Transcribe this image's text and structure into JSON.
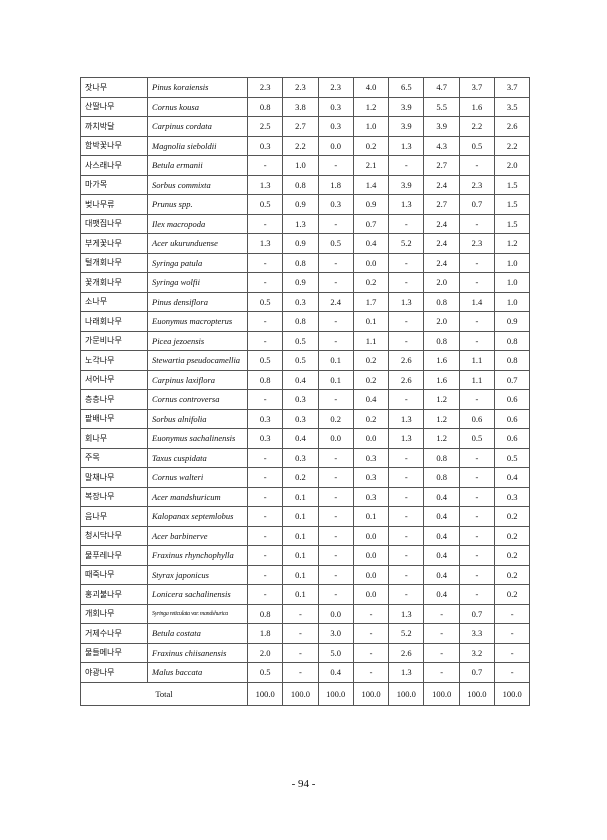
{
  "table": {
    "rows": [
      [
        "잣나무",
        "Pinus koraiensis",
        "2.3",
        "2.3",
        "2.3",
        "4.0",
        "6.5",
        "4.7",
        "3.7",
        "3.7"
      ],
      [
        "산딸나무",
        "Cornus kousa",
        "0.8",
        "3.8",
        "0.3",
        "1.2",
        "3.9",
        "5.5",
        "1.6",
        "3.5"
      ],
      [
        "까치박달",
        "Carpinus cordata",
        "2.5",
        "2.7",
        "0.3",
        "1.0",
        "3.9",
        "3.9",
        "2.2",
        "2.6"
      ],
      [
        "함박꽃나무",
        "Magnolia sieboldii",
        "0.3",
        "2.2",
        "0.0",
        "0.2",
        "1.3",
        "4.3",
        "0.5",
        "2.2"
      ],
      [
        "사스래나무",
        "Betula ermanii",
        "-",
        "1.0",
        "-",
        "2.1",
        "-",
        "2.7",
        "-",
        "2.0"
      ],
      [
        "마가목",
        "Sorbus commixta",
        "1.3",
        "0.8",
        "1.8",
        "1.4",
        "3.9",
        "2.4",
        "2.3",
        "1.5"
      ],
      [
        "벚나무류",
        "Prunus spp.",
        "0.5",
        "0.9",
        "0.3",
        "0.9",
        "1.3",
        "2.7",
        "0.7",
        "1.5"
      ],
      [
        "대팻집나무",
        "Ilex macropoda",
        "-",
        "1.3",
        "-",
        "0.7",
        "-",
        "2.4",
        "-",
        "1.5"
      ],
      [
        "부게꽃나무",
        "Acer ukurunduense",
        "1.3",
        "0.9",
        "0.5",
        "0.4",
        "5.2",
        "2.4",
        "2.3",
        "1.2"
      ],
      [
        "털개회나무",
        "Syringa patula",
        "-",
        "0.8",
        "-",
        "0.0",
        "-",
        "2.4",
        "-",
        "1.0"
      ],
      [
        "꽃개회나무",
        "Syringa wolfii",
        "-",
        "0.9",
        "-",
        "0.2",
        "-",
        "2.0",
        "-",
        "1.0"
      ],
      [
        "소나무",
        "Pinus densiflora",
        "0.5",
        "0.3",
        "2.4",
        "1.7",
        "1.3",
        "0.8",
        "1.4",
        "1.0"
      ],
      [
        "나래회나무",
        "Euonymus macropterus",
        "-",
        "0.8",
        "-",
        "0.1",
        "-",
        "2.0",
        "-",
        "0.9"
      ],
      [
        "가문비나무",
        "Picea jezoensis",
        "-",
        "0.5",
        "-",
        "1.1",
        "-",
        "0.8",
        "-",
        "0.8"
      ],
      [
        "노각나무",
        "Stewartia pseudocamellia",
        "0.5",
        "0.5",
        "0.1",
        "0.2",
        "2.6",
        "1.6",
        "1.1",
        "0.8"
      ],
      [
        "서어나무",
        "Carpinus laxiflora",
        "0.8",
        "0.4",
        "0.1",
        "0.2",
        "2.6",
        "1.6",
        "1.1",
        "0.7"
      ],
      [
        "층층나무",
        "Cornus controversa",
        "-",
        "0.3",
        "-",
        "0.4",
        "-",
        "1.2",
        "-",
        "0.6"
      ],
      [
        "팥배나무",
        "Sorbus alnifolia",
        "0.3",
        "0.3",
        "0.2",
        "0.2",
        "1.3",
        "1.2",
        "0.6",
        "0.6"
      ],
      [
        "회나무",
        "Euonymus sachalinensis",
        "0.3",
        "0.4",
        "0.0",
        "0.0",
        "1.3",
        "1.2",
        "0.5",
        "0.6"
      ],
      [
        "주목",
        "Taxus cuspidata",
        "-",
        "0.3",
        "-",
        "0.3",
        "-",
        "0.8",
        "-",
        "0.5"
      ],
      [
        "말채나무",
        "Cornus walteri",
        "-",
        "0.2",
        "-",
        "0.3",
        "-",
        "0.8",
        "-",
        "0.4"
      ],
      [
        "복장나무",
        "Acer mandshuricum",
        "-",
        "0.1",
        "-",
        "0.3",
        "-",
        "0.4",
        "-",
        "0.3"
      ],
      [
        "음나무",
        "Kalopanax septemlobus",
        "-",
        "0.1",
        "-",
        "0.1",
        "-",
        "0.4",
        "-",
        "0.2"
      ],
      [
        "청시닥나무",
        "Acer barbinerve",
        "-",
        "0.1",
        "-",
        "0.0",
        "-",
        "0.4",
        "-",
        "0.2"
      ],
      [
        "물푸레나무",
        "Fraxinus rhynchophylla",
        "-",
        "0.1",
        "-",
        "0.0",
        "-",
        "0.4",
        "-",
        "0.2"
      ],
      [
        "때죽나무",
        "Styrax japonicus",
        "-",
        "0.1",
        "-",
        "0.0",
        "-",
        "0.4",
        "-",
        "0.2"
      ],
      [
        "홍괴불나무",
        "Lonicera sachalinensis",
        "-",
        "0.1",
        "-",
        "0.0",
        "-",
        "0.4",
        "-",
        "0.2"
      ],
      [
        "개회나무",
        "Syringa reticulata var. mandshurica",
        "0.8",
        "-",
        "0.0",
        "-",
        "1.3",
        "-",
        "0.7",
        "-"
      ],
      [
        "거제수나무",
        "Betula costata",
        "1.8",
        "-",
        "3.0",
        "-",
        "5.2",
        "-",
        "3.3",
        "-"
      ],
      [
        "물들메나무",
        "Fraxinus chiisanensis",
        "2.0",
        "-",
        "5.0",
        "-",
        "2.6",
        "-",
        "3.2",
        "-"
      ],
      [
        "야광나무",
        "Malus baccata",
        "0.5",
        "-",
        "0.4",
        "-",
        "1.3",
        "-",
        "0.7",
        "-"
      ]
    ],
    "total": {
      "label": "Total",
      "values": [
        "100.0",
        "100.0",
        "100.0",
        "100.0",
        "100.0",
        "100.0",
        "100.0",
        "100.0"
      ]
    }
  },
  "page_number": "- 94 -"
}
